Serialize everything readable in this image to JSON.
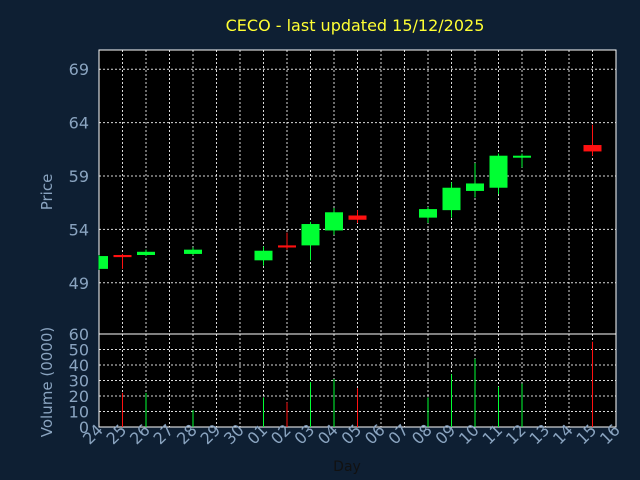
{
  "chart_data": {
    "type": "candlestick",
    "title": "CECO - last updated 15/12/2025",
    "xlabel": "Day",
    "ylabel_price": "Price",
    "ylabel_volume": "Volume (0000)",
    "x_ticks": [
      "24",
      "25",
      "26",
      "27",
      "28",
      "29",
      "30",
      "01",
      "02",
      "03",
      "04",
      "05",
      "06",
      "07",
      "08",
      "09",
      "10",
      "11",
      "12",
      "13",
      "14",
      "15",
      "16"
    ],
    "price_ticks": [
      49,
      54,
      59,
      64,
      69
    ],
    "price_ylim": [
      44.2,
      70.8
    ],
    "volume_ticks": [
      0,
      10,
      20,
      30,
      40,
      50,
      60
    ],
    "volume_ylim": [
      0,
      60
    ],
    "grid": true,
    "colors": {
      "background": "#0e1f33",
      "plot_background": "#000000",
      "up": "#00ff33",
      "down": "#ff1111",
      "title": "#ffff33",
      "axis_text": "#8aa4c0"
    },
    "candles": [
      {
        "day": "24",
        "open": 50.3,
        "high": 51.6,
        "low": 50.2,
        "close": 51.5,
        "volume": 0
      },
      {
        "day": "25",
        "open": 51.6,
        "high": 51.7,
        "low": 50.3,
        "close": 51.4,
        "volume": 22
      },
      {
        "day": "26",
        "open": 51.6,
        "high": 52.1,
        "low": 51.5,
        "close": 51.9,
        "volume": 22
      },
      {
        "day": "28",
        "open": 51.7,
        "high": 52.3,
        "low": 51.6,
        "close": 52.1,
        "volume": 11
      },
      {
        "day": "01",
        "open": 51.1,
        "high": 52.4,
        "low": 50.6,
        "close": 52.0,
        "volume": 19
      },
      {
        "day": "02",
        "open": 52.5,
        "high": 53.7,
        "low": 52.1,
        "close": 52.3,
        "volume": 16
      },
      {
        "day": "03",
        "open": 52.5,
        "high": 54.7,
        "low": 51.1,
        "close": 54.5,
        "volume": 29
      },
      {
        "day": "04",
        "open": 53.9,
        "high": 56.0,
        "low": 53.5,
        "close": 55.6,
        "volume": 31
      },
      {
        "day": "05",
        "open": 55.3,
        "high": 55.8,
        "low": 54.6,
        "close": 54.9,
        "volume": 25
      },
      {
        "day": "08",
        "open": 55.1,
        "high": 56.1,
        "low": 54.6,
        "close": 55.9,
        "volume": 19
      },
      {
        "day": "09",
        "open": 55.8,
        "high": 58.4,
        "low": 55.1,
        "close": 57.9,
        "volume": 34
      },
      {
        "day": "10",
        "open": 57.6,
        "high": 60.2,
        "low": 57.0,
        "close": 58.3,
        "volume": 44
      },
      {
        "day": "11",
        "open": 57.9,
        "high": 61.1,
        "low": 57.3,
        "close": 60.9,
        "volume": 26
      },
      {
        "day": "12",
        "open": 60.8,
        "high": 61.1,
        "low": 59.8,
        "close": 60.9,
        "volume": 28
      },
      {
        "day": "15",
        "open": 61.9,
        "high": 63.8,
        "low": 60.9,
        "close": 61.3,
        "volume": 55
      }
    ]
  }
}
